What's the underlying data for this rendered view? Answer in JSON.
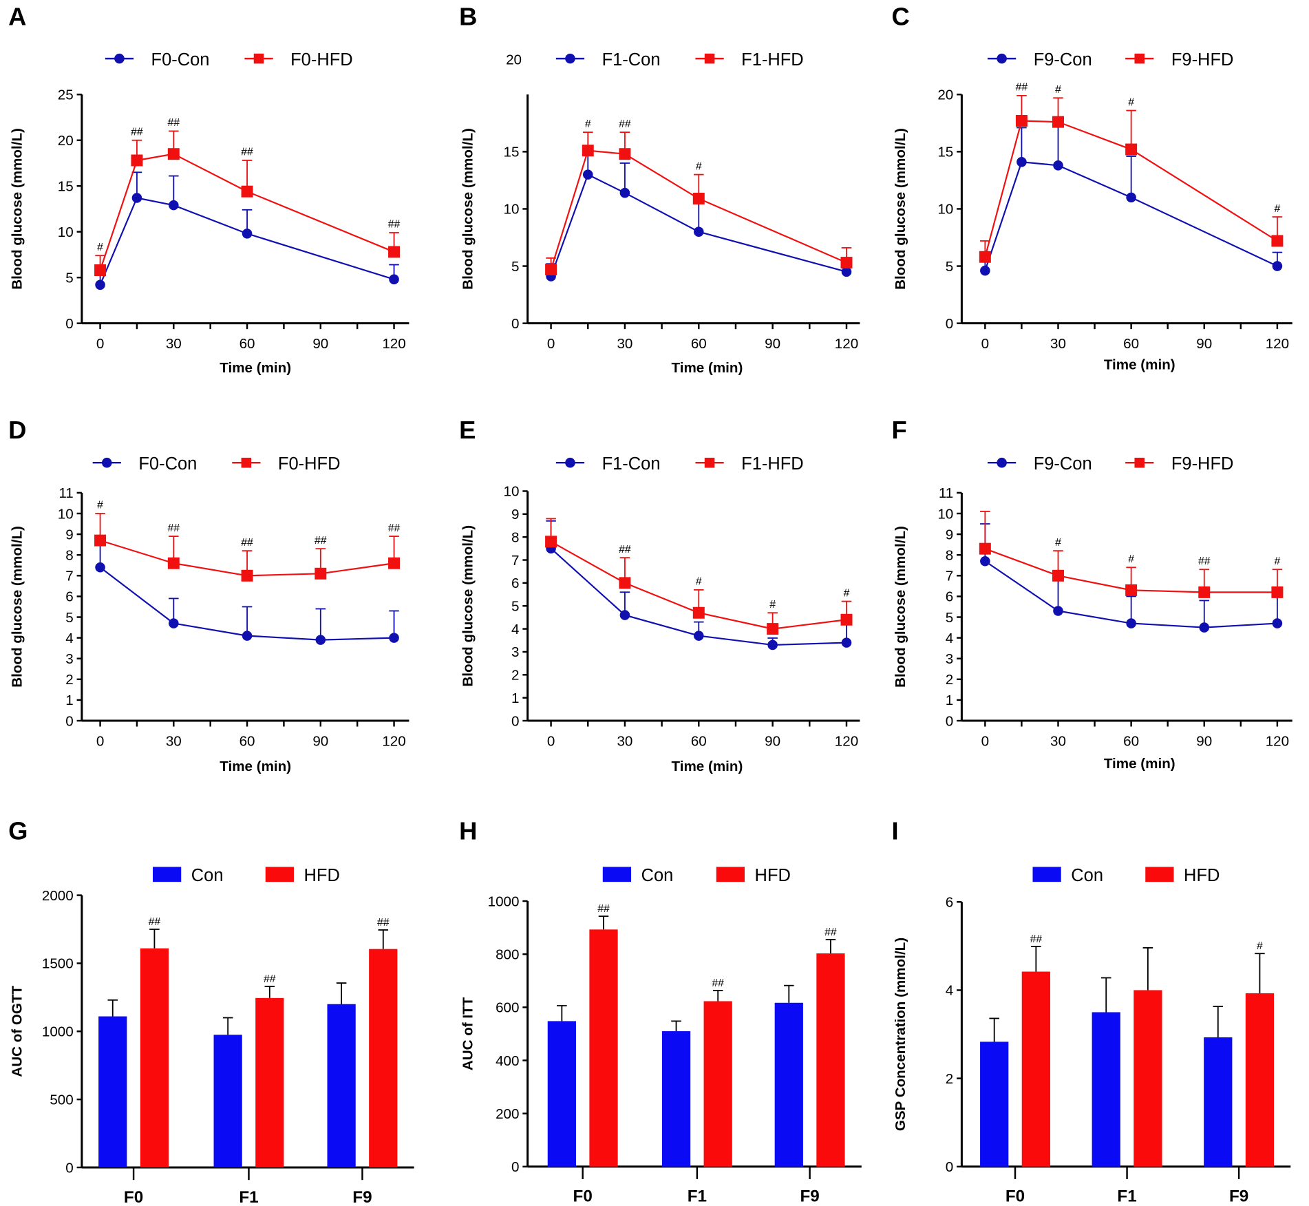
{
  "colors": {
    "con": "#1010b0",
    "hfd": "#f01010",
    "con_bar": "#0a0af5",
    "hfd_bar": "#fa0a0a"
  },
  "chart_data": [
    {
      "panel": "A",
      "type": "line",
      "xlabel": "Time (min)",
      "ylabel": "Blood glucose (mmol/L)",
      "xlim": [
        0,
        120
      ],
      "xticks": [
        0,
        30,
        60,
        90,
        120
      ],
      "ylim": [
        0,
        25
      ],
      "yticks": [
        0,
        5,
        10,
        15,
        20,
        25
      ],
      "legend": "top",
      "x": [
        0,
        15,
        30,
        60,
        120
      ],
      "series": [
        {
          "name": "F0-Con",
          "values": [
            4.2,
            13.7,
            12.9,
            9.8,
            4.8
          ],
          "error": [
            1.3,
            2.8,
            3.2,
            2.6,
            1.6
          ]
        },
        {
          "name": "F0-HFD",
          "values": [
            5.8,
            17.8,
            18.5,
            14.4,
            7.8
          ],
          "error": [
            1.6,
            2.2,
            2.5,
            3.4,
            2.1
          ]
        }
      ],
      "significance": [
        "#",
        "##",
        "##",
        "##",
        "##"
      ]
    },
    {
      "panel": "B",
      "type": "line",
      "xlabel": "Time (min)",
      "ylabel": "Blood glucose (mmol/L)",
      "xlim": [
        0,
        120
      ],
      "xticks": [
        0,
        30,
        60,
        90,
        120
      ],
      "ylim": [
        0,
        20
      ],
      "yticks": [
        0,
        5,
        10,
        15
      ],
      "stray_label": "20",
      "legend": "top",
      "x": [
        0,
        15,
        30,
        60,
        120
      ],
      "series": [
        {
          "name": "F1-Con",
          "values": [
            4.1,
            13.0,
            11.4,
            8.0,
            4.5
          ],
          "error": [
            1.1,
            2.0,
            2.6,
            3.2,
            1.1
          ]
        },
        {
          "name": "F1-HFD",
          "values": [
            4.7,
            15.1,
            14.8,
            10.9,
            5.3
          ],
          "error": [
            1.0,
            1.6,
            1.9,
            2.1,
            1.3
          ]
        }
      ],
      "significance": [
        "",
        "#",
        "##",
        "#",
        ""
      ]
    },
    {
      "panel": "C",
      "type": "line",
      "xlabel": "Time (min)",
      "ylabel": "Blood glucose (mmol/L)",
      "xlim": [
        0,
        120
      ],
      "xticks": [
        0,
        30,
        60,
        90,
        120
      ],
      "ylim": [
        0,
        20
      ],
      "yticks": [
        0,
        5,
        10,
        15,
        20
      ],
      "legend": "top",
      "x": [
        0,
        15,
        30,
        60,
        120
      ],
      "series": [
        {
          "name": "F9-Con",
          "values": [
            4.6,
            14.1,
            13.8,
            11.0,
            5.0
          ],
          "error": [
            1.0,
            3.0,
            3.9,
            3.6,
            1.2
          ]
        },
        {
          "name": "F9-HFD",
          "values": [
            5.8,
            17.7,
            17.6,
            15.2,
            7.2
          ],
          "error": [
            1.4,
            2.2,
            2.1,
            3.4,
            2.1
          ]
        }
      ],
      "significance": [
        "",
        "##",
        "#",
        "#",
        "#"
      ]
    },
    {
      "panel": "D",
      "type": "line",
      "xlabel": "Time (min)",
      "ylabel": "Blood glucose (mmol/L)",
      "xlim": [
        0,
        120
      ],
      "xticks": [
        0,
        30,
        60,
        90,
        120
      ],
      "ylim": [
        0,
        11
      ],
      "yticks": [
        0,
        1,
        2,
        3,
        4,
        5,
        6,
        7,
        8,
        9,
        10,
        11
      ],
      "legend": "top",
      "x": [
        0,
        30,
        60,
        90,
        120
      ],
      "series": [
        {
          "name": "F0-Con",
          "values": [
            7.4,
            4.7,
            4.1,
            3.9,
            4.0
          ],
          "error": [
            1.3,
            1.2,
            1.4,
            1.5,
            1.3
          ]
        },
        {
          "name": "F0-HFD",
          "values": [
            8.7,
            7.6,
            7.0,
            7.1,
            7.6
          ],
          "error": [
            1.3,
            1.3,
            1.2,
            1.2,
            1.3
          ]
        }
      ],
      "significance": [
        "#",
        "##",
        "##",
        "##",
        "##"
      ]
    },
    {
      "panel": "E",
      "type": "line",
      "xlabel": "Time (min)",
      "ylabel": "Blood glucose (mmol/L)",
      "xlim": [
        0,
        120
      ],
      "xticks": [
        0,
        30,
        60,
        90,
        120
      ],
      "ylim": [
        0,
        10
      ],
      "yticks": [
        0,
        1,
        2,
        3,
        4,
        5,
        6,
        7,
        8,
        9,
        10
      ],
      "legend": "top",
      "x": [
        0,
        30,
        60,
        90,
        120
      ],
      "series": [
        {
          "name": "F1-Con",
          "values": [
            7.5,
            4.6,
            3.7,
            3.3,
            3.4
          ],
          "error": [
            1.2,
            1.0,
            0.6,
            0.3,
            0.8
          ]
        },
        {
          "name": "F1-HFD",
          "values": [
            7.8,
            6.0,
            4.7,
            4.0,
            4.4
          ],
          "error": [
            1.0,
            1.1,
            1.0,
            0.7,
            0.8
          ]
        }
      ],
      "significance": [
        "",
        "##",
        "#",
        "#",
        "#"
      ]
    },
    {
      "panel": "F",
      "type": "line",
      "xlabel": "Time (min)",
      "ylabel": "Blood glucose (mmol/L)",
      "xlim": [
        0,
        120
      ],
      "xticks": [
        0,
        30,
        60,
        90,
        120
      ],
      "ylim": [
        0,
        11
      ],
      "yticks": [
        0,
        1,
        2,
        3,
        4,
        5,
        6,
        7,
        8,
        9,
        10,
        11
      ],
      "legend": "top",
      "x": [
        0,
        30,
        60,
        90,
        120
      ],
      "series": [
        {
          "name": "F9-Con",
          "values": [
            7.7,
            5.3,
            4.7,
            4.5,
            4.7
          ],
          "error": [
            1.8,
            1.7,
            1.3,
            1.3,
            1.4
          ]
        },
        {
          "name": "F9-HFD",
          "values": [
            8.3,
            7.0,
            6.3,
            6.2,
            6.2
          ],
          "error": [
            1.8,
            1.2,
            1.1,
            1.1,
            1.1
          ]
        }
      ],
      "significance": [
        "",
        "#",
        "#",
        "##",
        "#"
      ]
    },
    {
      "panel": "G",
      "type": "bar",
      "xlabel": "",
      "ylabel": "AUC of OGTT",
      "ylim": [
        0,
        2000
      ],
      "yticks": [
        0,
        500,
        1000,
        1500,
        2000
      ],
      "legend": "top",
      "categories": [
        "F0",
        "F1",
        "F9"
      ],
      "series": [
        {
          "name": "Con",
          "values": [
            1110,
            975,
            1200
          ],
          "error": [
            120,
            125,
            155
          ]
        },
        {
          "name": "HFD",
          "values": [
            1610,
            1245,
            1605
          ],
          "error": [
            140,
            85,
            140
          ]
        }
      ],
      "significance": [
        "##",
        "##",
        "##"
      ]
    },
    {
      "panel": "H",
      "type": "bar",
      "xlabel": "",
      "ylabel": "AUC of ITT",
      "ylim": [
        0,
        1000
      ],
      "yticks": [
        0,
        200,
        400,
        600,
        800,
        1000
      ],
      "legend": "top",
      "categories": [
        "F0",
        "F1",
        "F9"
      ],
      "series": [
        {
          "name": "Con",
          "values": [
            548,
            510,
            617
          ],
          "error": [
            58,
            38,
            65
          ]
        },
        {
          "name": "HFD",
          "values": [
            893,
            623,
            803
          ],
          "error": [
            50,
            40,
            52
          ]
        }
      ],
      "significance": [
        "##",
        "##",
        "##"
      ]
    },
    {
      "panel": "I",
      "type": "bar",
      "xlabel": "",
      "ylabel": "GSP Concentration (mmol/L)",
      "ylim": [
        0,
        6
      ],
      "yticks": [
        0,
        2,
        4,
        6
      ],
      "legend": "top",
      "categories": [
        "F0",
        "F1",
        "F9"
      ],
      "series": [
        {
          "name": "Con",
          "values": [
            2.83,
            3.5,
            2.93
          ],
          "error": [
            0.53,
            0.78,
            0.7
          ]
        },
        {
          "name": "HFD",
          "values": [
            4.42,
            4.0,
            3.93
          ],
          "error": [
            0.57,
            0.96,
            0.9
          ]
        }
      ],
      "significance": [
        "##",
        "",
        "#"
      ]
    }
  ]
}
